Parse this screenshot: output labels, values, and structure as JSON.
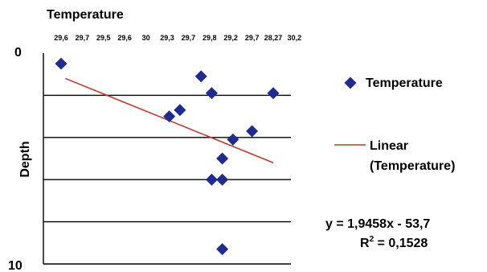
{
  "chart_data": {
    "type": "scatter",
    "x_title": "Temperature",
    "y_title": "Depth",
    "x_tick_labels": [
      "29,6",
      "29,7",
      "29,5",
      "29,6",
      "30",
      "29,3",
      "29,7",
      "29,8",
      "29,2",
      "29,7",
      "28,27",
      "30,2"
    ],
    "y_tick_labels": [
      "0",
      "10"
    ],
    "ylim": [
      0,
      10
    ],
    "y_inverted": true,
    "horizontal_gridlines": [
      2,
      4,
      6,
      8,
      10
    ],
    "series": [
      {
        "name": "Temperature",
        "marker": "diamond",
        "color": "#1f2b8f",
        "points": [
          {
            "x_tick": 0.0,
            "y": 0.5
          },
          {
            "x_tick": 6.6,
            "y": 1.1
          },
          {
            "x_tick": 7.1,
            "y": 1.9
          },
          {
            "x_tick": 5.6,
            "y": 2.7
          },
          {
            "x_tick": 5.1,
            "y": 3.0
          },
          {
            "x_tick": 9.0,
            "y": 3.7
          },
          {
            "x_tick": 8.1,
            "y": 4.1
          },
          {
            "x_tick": 7.6,
            "y": 5.0
          },
          {
            "x_tick": 7.1,
            "y": 6.0
          },
          {
            "x_tick": 7.6,
            "y": 6.0
          },
          {
            "x_tick": 10.0,
            "y": 1.9
          },
          {
            "x_tick": 7.6,
            "y": 9.3
          }
        ]
      }
    ],
    "trendline": {
      "name": "Linear (Temperature)",
      "color": "#c0392b",
      "start": {
        "x_tick": 0.2,
        "y": 1.2
      },
      "end": {
        "x_tick": 10.0,
        "y": 5.2
      }
    },
    "legend": {
      "placement": "right",
      "entries": [
        {
          "label": "Temperature",
          "kind": "diamond",
          "color": "#1f2b8f"
        },
        {
          "label_line1": "Linear",
          "label_line2": "(Temperature)",
          "kind": "line",
          "color": "#c0392b"
        }
      ]
    },
    "equation": {
      "line1": "y = 1,9458x - 53,7",
      "r2_prefix": "R",
      "r2_sup": "2",
      "r2_suffix": " = 0,1528"
    }
  }
}
